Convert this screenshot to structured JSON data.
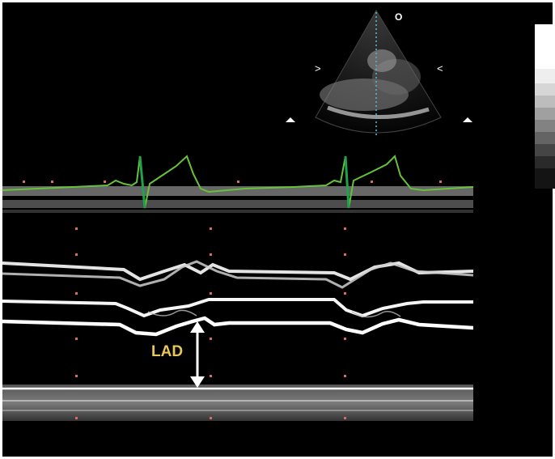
{
  "annotations": {
    "measurement_label": "LAD"
  },
  "orientation_markers": {
    "apex_marker": "O",
    "left_marker": ">",
    "right_marker": "<"
  },
  "colors": {
    "background": "#000000",
    "ecg_trace": "#66c23a",
    "ecg_qrs": "#1fa34a",
    "label": "#e8c65a",
    "scan_line": "#5ab4c8",
    "depth_dots": "#d86a6a",
    "tissue": "#f0f0f0"
  },
  "icons": {
    "measurement_arrow": "double-headed-vertical-arrow-icon",
    "depth_marker": "triangle-marker-icon"
  }
}
